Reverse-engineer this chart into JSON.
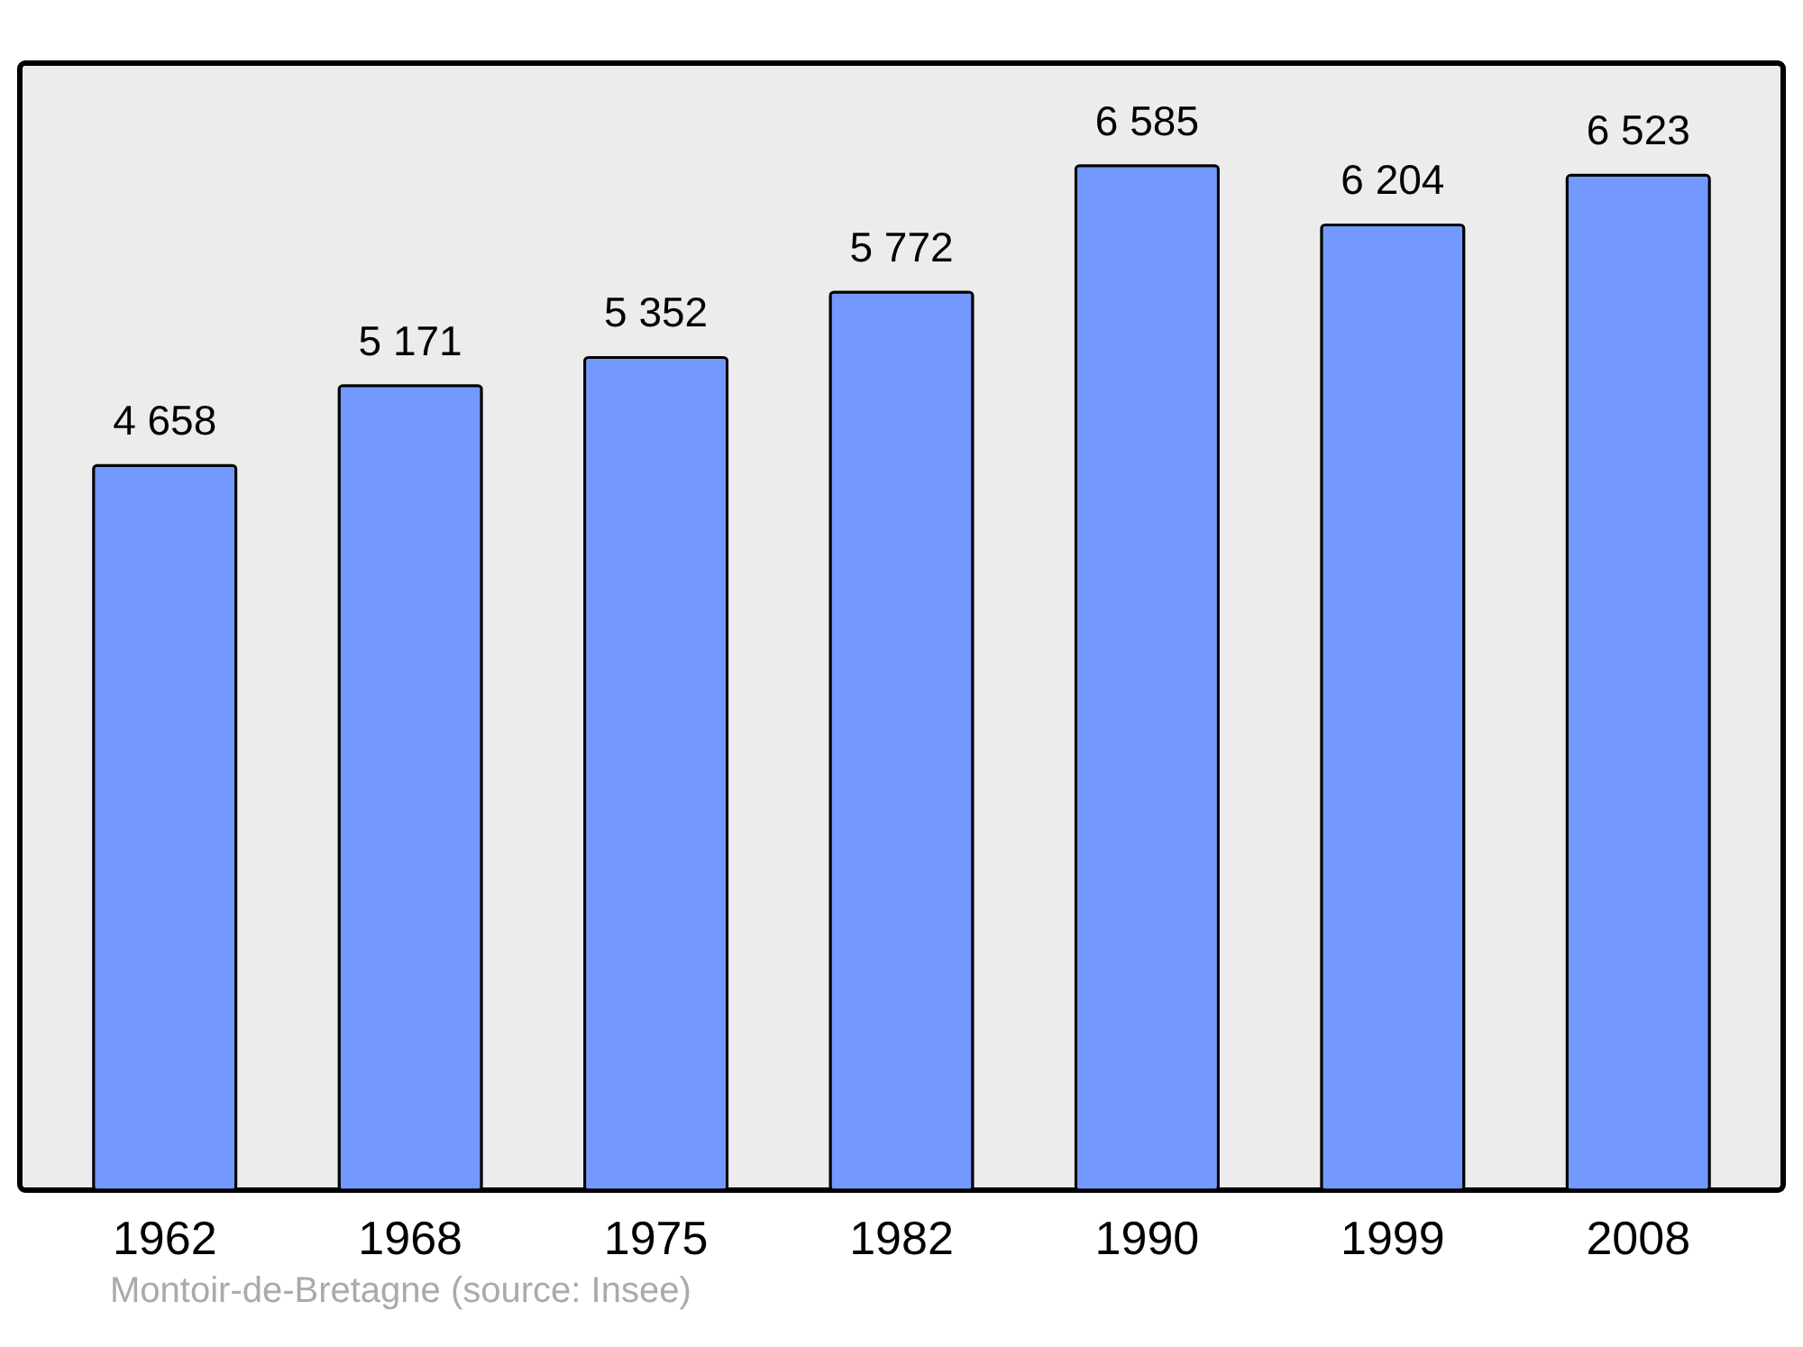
{
  "chart_data": {
    "type": "bar",
    "categories": [
      "1962",
      "1968",
      "1975",
      "1982",
      "1990",
      "1999",
      "2008"
    ],
    "values": [
      4658,
      5171,
      5352,
      5772,
      6585,
      6204,
      6523
    ],
    "color": "#7399ff",
    "data_labels": true,
    "value_labels": [
      "4 658",
      "5 171",
      "5 352",
      "5 772",
      "6 585",
      "6 204",
      "6 523"
    ],
    "annotations": [
      "Montoir-de-Bretagne    (source: Insee)"
    ]
  }
}
